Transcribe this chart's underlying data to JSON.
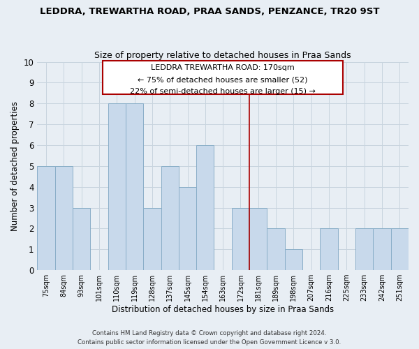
{
  "title": "LEDDRA, TREWARTHA ROAD, PRAA SANDS, PENZANCE, TR20 9ST",
  "subtitle": "Size of property relative to detached houses in Praa Sands",
  "xlabel": "Distribution of detached houses by size in Praa Sands",
  "ylabel": "Number of detached properties",
  "bin_labels": [
    "75sqm",
    "84sqm",
    "93sqm",
    "101sqm",
    "110sqm",
    "119sqm",
    "128sqm",
    "137sqm",
    "145sqm",
    "154sqm",
    "163sqm",
    "172sqm",
    "181sqm",
    "189sqm",
    "198sqm",
    "207sqm",
    "216sqm",
    "225sqm",
    "233sqm",
    "242sqm",
    "251sqm"
  ],
  "bar_heights": [
    5,
    5,
    3,
    0,
    8,
    8,
    3,
    5,
    4,
    6,
    0,
    3,
    3,
    2,
    1,
    0,
    2,
    0,
    2,
    2,
    2
  ],
  "bar_color": "#c8d9eb",
  "bar_edge_color": "#8aaec8",
  "vline_index": 11,
  "vline_color": "#aa0000",
  "ylim": [
    0,
    10
  ],
  "yticks": [
    0,
    1,
    2,
    3,
    4,
    5,
    6,
    7,
    8,
    9,
    10
  ],
  "annotation_title": "LEDDRA TREWARTHA ROAD: 170sqm",
  "annotation_line1": "← 75% of detached houses are smaller (52)",
  "annotation_line2": "22% of semi-detached houses are larger (15) →",
  "annotation_box_color": "#ffffff",
  "annotation_box_edge_color": "#aa0000",
  "footer_line1": "Contains HM Land Registry data © Crown copyright and database right 2024.",
  "footer_line2": "Contains public sector information licensed under the Open Government Licence v 3.0.",
  "grid_color": "#c8d4de",
  "background_color": "#e8eef4"
}
